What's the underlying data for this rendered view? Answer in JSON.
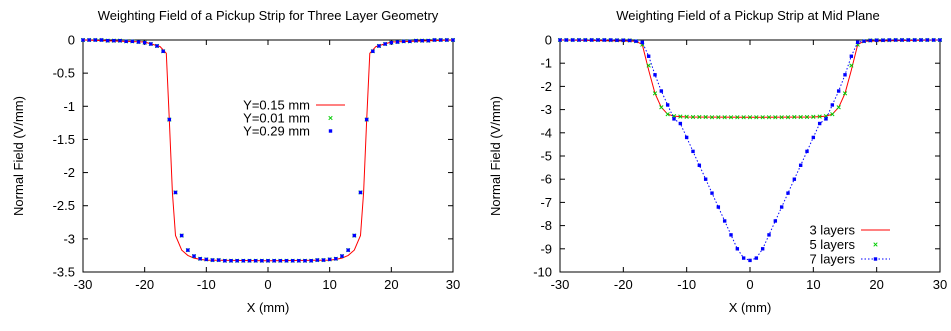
{
  "chart_data": [
    {
      "type": "line",
      "title": "Weighting Field of a Pickup Strip for Three Layer Geometry",
      "xlabel": "X (mm)",
      "ylabel": "Normal Field (V/mm)",
      "xlim": [
        -30,
        30
      ],
      "ylim": [
        -3.5,
        0
      ],
      "xticks": [
        -30,
        -20,
        -10,
        0,
        10,
        20,
        30
      ],
      "yticks": [
        0,
        -0.5,
        -1,
        -1.5,
        -2,
        -2.5,
        -3,
        -3.5
      ],
      "ytick_labels": [
        "0",
        "-0.5",
        "-1",
        "-1.5",
        "-2",
        "-2.5",
        "-3",
        "-3.5"
      ],
      "grid": false,
      "legend_placement": "center-left",
      "series": [
        {
          "name": "Y=0.15 mm",
          "style": "line",
          "color": "#ff0000",
          "x": [
            -30,
            -20,
            -17.5,
            -16.5,
            -16,
            -15.5,
            -15,
            -14,
            -13,
            -12,
            -11,
            -10,
            0,
            10,
            11,
            12,
            13,
            14,
            15,
            15.5,
            16,
            16.5,
            17.5,
            20,
            30
          ],
          "y": [
            0,
            -0.03,
            -0.1,
            -0.2,
            -1.2,
            -2.3,
            -2.95,
            -3.17,
            -3.25,
            -3.29,
            -3.31,
            -3.32,
            -3.33,
            -3.32,
            -3.31,
            -3.29,
            -3.25,
            -3.17,
            -2.95,
            -2.3,
            -1.2,
            -0.2,
            -0.1,
            -0.03,
            0
          ]
        },
        {
          "name": "Y=0.01 mm",
          "style": "points",
          "marker": "x",
          "color": "#00cc00",
          "x": [
            -30,
            -29,
            -28,
            -27,
            -26,
            -25,
            -24,
            -23,
            -22,
            -21,
            -20,
            -19,
            -18,
            -17,
            -16,
            -15,
            -14,
            -13,
            -12,
            -11,
            -10,
            -9,
            -8,
            -7,
            -6,
            -5,
            -4,
            -3,
            -2,
            -1,
            0,
            1,
            2,
            3,
            4,
            5,
            6,
            7,
            8,
            9,
            10,
            11,
            12,
            13,
            14,
            15,
            16,
            17,
            18,
            19,
            20,
            21,
            22,
            23,
            24,
            25,
            26,
            27,
            28,
            29,
            30
          ],
          "y": [
            0,
            0,
            0,
            0,
            -0.01,
            -0.01,
            -0.01,
            -0.02,
            -0.02,
            -0.03,
            -0.04,
            -0.06,
            -0.09,
            -0.17,
            -1.2,
            -2.3,
            -2.95,
            -3.17,
            -3.26,
            -3.3,
            -3.31,
            -3.32,
            -3.32,
            -3.33,
            -3.33,
            -3.33,
            -3.33,
            -3.33,
            -3.33,
            -3.33,
            -3.33,
            -3.33,
            -3.33,
            -3.33,
            -3.33,
            -3.33,
            -3.33,
            -3.33,
            -3.32,
            -3.32,
            -3.31,
            -3.3,
            -3.26,
            -3.17,
            -2.95,
            -2.3,
            -1.2,
            -0.17,
            -0.09,
            -0.06,
            -0.04,
            -0.03,
            -0.02,
            -0.02,
            -0.01,
            -0.01,
            -0.01,
            0,
            0,
            0,
            0
          ]
        },
        {
          "name": "Y=0.29 mm",
          "style": "points",
          "marker": "square",
          "color": "#0000ff",
          "x": [
            -30,
            -29,
            -28,
            -27,
            -26,
            -25,
            -24,
            -23,
            -22,
            -21,
            -20,
            -19,
            -18,
            -17,
            -16,
            -15,
            -14,
            -13,
            -12,
            -11,
            -10,
            -9,
            -8,
            -7,
            -6,
            -5,
            -4,
            -3,
            -2,
            -1,
            0,
            1,
            2,
            3,
            4,
            5,
            6,
            7,
            8,
            9,
            10,
            11,
            12,
            13,
            14,
            15,
            16,
            17,
            18,
            19,
            20,
            21,
            22,
            23,
            24,
            25,
            26,
            27,
            28,
            29,
            30
          ],
          "y": [
            0,
            0,
            0,
            0,
            -0.01,
            -0.01,
            -0.01,
            -0.02,
            -0.02,
            -0.03,
            -0.04,
            -0.06,
            -0.09,
            -0.17,
            -1.2,
            -2.3,
            -2.95,
            -3.17,
            -3.26,
            -3.3,
            -3.31,
            -3.32,
            -3.32,
            -3.33,
            -3.33,
            -3.33,
            -3.33,
            -3.33,
            -3.33,
            -3.33,
            -3.33,
            -3.33,
            -3.33,
            -3.33,
            -3.33,
            -3.33,
            -3.33,
            -3.33,
            -3.32,
            -3.32,
            -3.31,
            -3.3,
            -3.26,
            -3.17,
            -2.95,
            -2.3,
            -1.2,
            -0.17,
            -0.09,
            -0.06,
            -0.04,
            -0.03,
            -0.02,
            -0.02,
            -0.01,
            -0.01,
            -0.01,
            0,
            0,
            0,
            0
          ]
        }
      ]
    },
    {
      "type": "line",
      "title": "Weighting Field of a Pickup Strip at Mid Plane",
      "xlabel": "X (mm)",
      "ylabel": "Normal Field (V/mm)",
      "xlim": [
        -30,
        30
      ],
      "ylim": [
        -10,
        0
      ],
      "xticks": [
        -30,
        -20,
        -10,
        0,
        10,
        20,
        30
      ],
      "yticks": [
        0,
        -1,
        -2,
        -3,
        -4,
        -5,
        -6,
        -7,
        -8,
        -9,
        -10
      ],
      "ytick_labels": [
        "0",
        "-1",
        "-2",
        "-3",
        "-4",
        "-5",
        "-6",
        "-7",
        "-8",
        "-9",
        "-10"
      ],
      "grid": false,
      "legend_placement": "bottom-right",
      "series": [
        {
          "name": "3 layers",
          "style": "line",
          "color": "#ff0000",
          "x": [
            -30,
            -18,
            -17,
            -16,
            -15,
            -14,
            -13,
            -12,
            -11,
            -10,
            0,
            10,
            11,
            12,
            13,
            14,
            15,
            16,
            17,
            18,
            30
          ],
          "y": [
            0,
            -0.05,
            -0.2,
            -1.3,
            -2.3,
            -2.9,
            -3.2,
            -3.28,
            -3.3,
            -3.32,
            -3.33,
            -3.32,
            -3.3,
            -3.28,
            -3.2,
            -2.9,
            -2.3,
            -1.3,
            -0.2,
            -0.05,
            0
          ]
        },
        {
          "name": "5 layers",
          "style": "points",
          "marker": "x",
          "color": "#00cc00",
          "x": [
            -30,
            -29,
            -28,
            -27,
            -26,
            -25,
            -24,
            -23,
            -22,
            -21,
            -20,
            -19,
            -18,
            -17,
            -16,
            -15,
            -14,
            -13,
            -12,
            -11,
            -10,
            -9,
            -8,
            -7,
            -6,
            -5,
            -4,
            -3,
            -2,
            -1,
            0,
            1,
            2,
            3,
            4,
            5,
            6,
            7,
            8,
            9,
            10,
            11,
            12,
            13,
            14,
            15,
            16,
            17,
            18,
            19,
            20,
            21,
            22,
            23,
            24,
            25,
            26,
            27,
            28,
            29,
            30
          ],
          "y": [
            0,
            0,
            0,
            0,
            0,
            0,
            0,
            0,
            -0.01,
            -0.01,
            -0.01,
            -0.02,
            -0.05,
            -0.2,
            -1.1,
            -2.3,
            -2.9,
            -3.2,
            -3.28,
            -3.3,
            -3.31,
            -3.32,
            -3.32,
            -3.32,
            -3.33,
            -3.33,
            -3.33,
            -3.33,
            -3.33,
            -3.33,
            -3.33,
            -3.33,
            -3.33,
            -3.33,
            -3.33,
            -3.33,
            -3.33,
            -3.32,
            -3.32,
            -3.32,
            -3.31,
            -3.3,
            -3.28,
            -3.2,
            -2.9,
            -2.3,
            -1.1,
            -0.2,
            -0.05,
            -0.02,
            -0.01,
            -0.01,
            -0.01,
            0,
            0,
            0,
            0,
            0,
            0,
            0,
            0
          ]
        },
        {
          "name": "7 layers",
          "style": "linespoints",
          "marker": "square",
          "color": "#0000ff",
          "x": [
            -30,
            -29,
            -28,
            -27,
            -26,
            -25,
            -24,
            -23,
            -22,
            -21,
            -20,
            -19,
            -18,
            -17,
            -16,
            -15,
            -14,
            -13,
            -12,
            -11,
            -10,
            -9,
            -8,
            -7,
            -6,
            -5,
            -4,
            -3,
            -2,
            -1,
            0,
            1,
            2,
            3,
            4,
            5,
            6,
            7,
            8,
            9,
            10,
            11,
            12,
            13,
            14,
            15,
            16,
            17,
            18,
            19,
            20,
            21,
            22,
            23,
            24,
            25,
            26,
            27,
            28,
            29,
            30
          ],
          "y": [
            0,
            0,
            0,
            0,
            0,
            0,
            0,
            0,
            0,
            -0.01,
            -0.01,
            -0.02,
            -0.05,
            -0.1,
            -0.7,
            -1.5,
            -2.2,
            -2.8,
            -3.4,
            -3.6,
            -4.2,
            -4.8,
            -5.4,
            -6.0,
            -6.6,
            -7.2,
            -7.8,
            -8.4,
            -9.0,
            -9.4,
            -9.5,
            -9.4,
            -9.0,
            -8.4,
            -7.8,
            -7.2,
            -6.6,
            -6.0,
            -5.4,
            -4.8,
            -4.2,
            -3.6,
            -3.4,
            -2.8,
            -2.2,
            -1.5,
            -0.7,
            -0.1,
            -0.05,
            -0.02,
            -0.01,
            -0.01,
            0,
            0,
            0,
            0,
            0,
            0,
            0,
            0,
            0
          ]
        }
      ]
    }
  ]
}
